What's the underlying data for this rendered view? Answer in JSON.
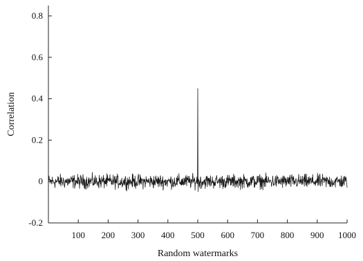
{
  "chart_data": {
    "type": "line",
    "title": "",
    "xlabel": "Random watermarks",
    "ylabel": "Correlation",
    "xlim": [
      0,
      1000
    ],
    "ylim": [
      -0.2,
      0.85
    ],
    "xticks": [
      100,
      200,
      300,
      400,
      500,
      600,
      700,
      800,
      900,
      1000
    ],
    "yticks": [
      -0.2,
      0,
      0.2,
      0.4,
      0.6,
      0.8
    ],
    "ytick_labels": [
      "-0.2",
      "0",
      "0.2",
      "0.4",
      "0.6",
      "0.8"
    ],
    "grid": false,
    "series": [
      {
        "x": [
          1,
          1000
        ],
        "baseline": 0,
        "noise_amplitude": 0.03,
        "peaks": [
          {
            "x": 500,
            "y": 0.45
          }
        ]
      }
    ],
    "colors": {
      "line": "#1a1a1a",
      "axis": "#222222"
    }
  }
}
